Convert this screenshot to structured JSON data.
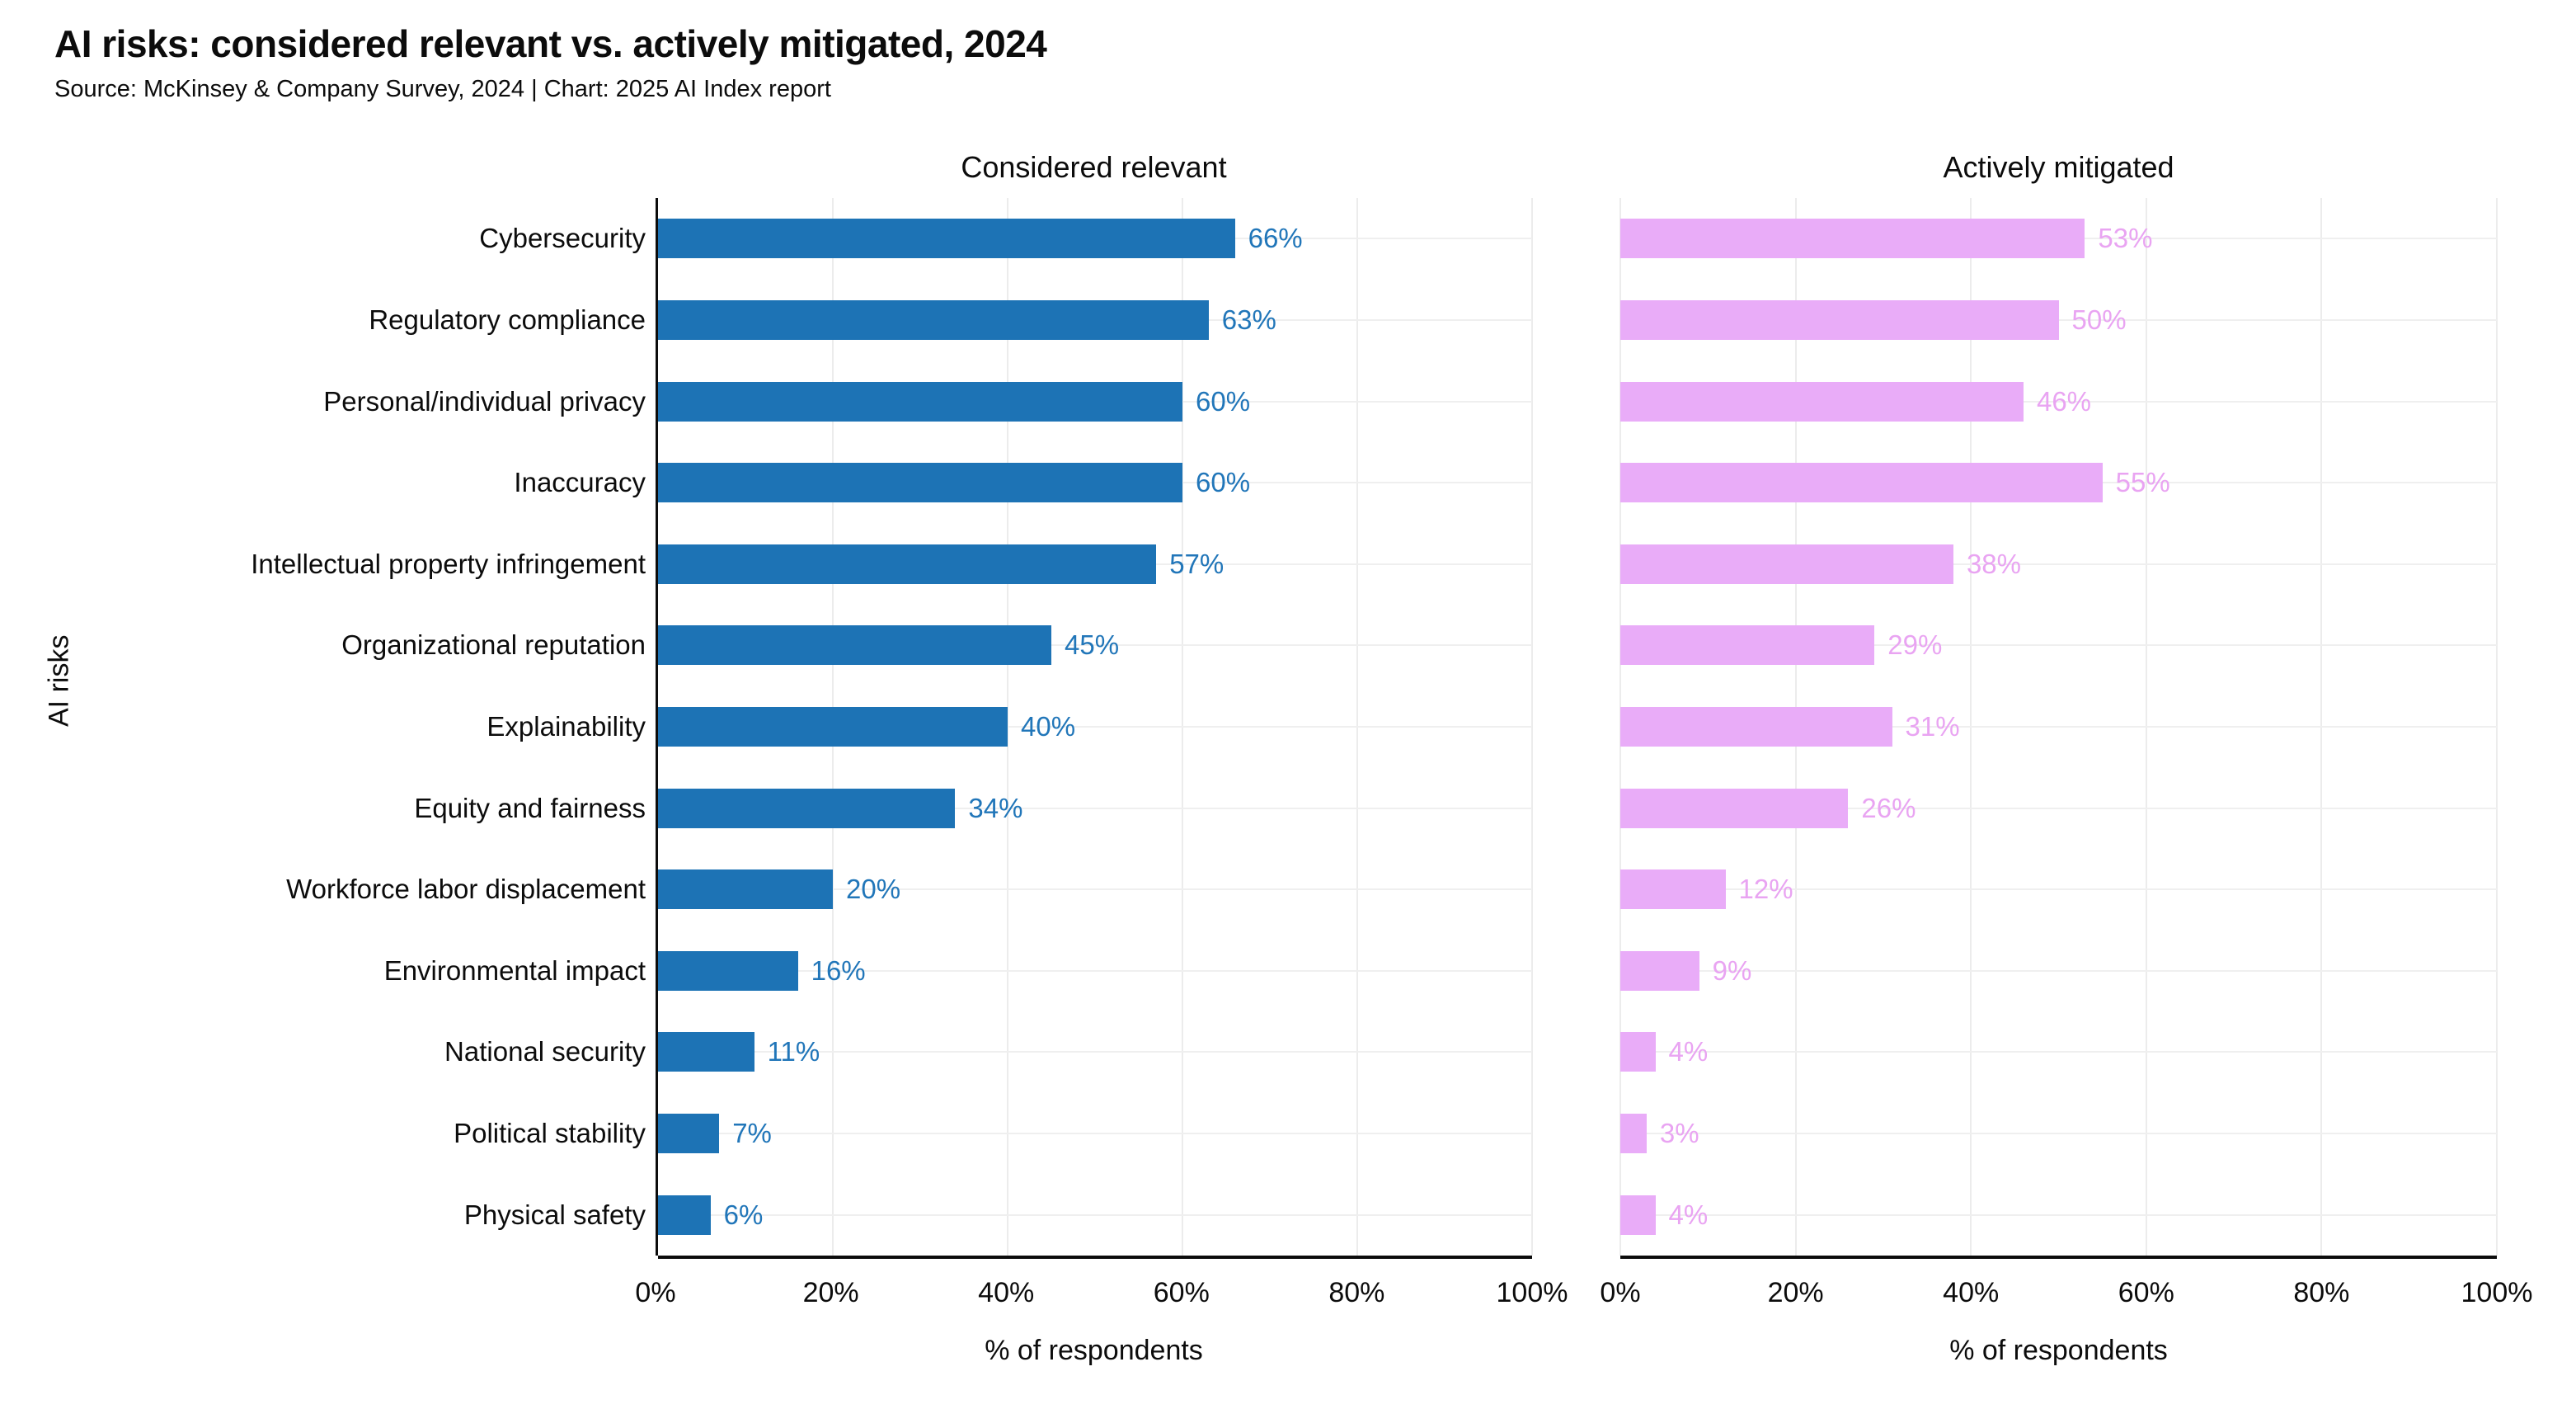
{
  "header": {
    "title": "AI risks: considered relevant vs. actively mitigated, 2024",
    "subtitle": "Source: McKinsey & Company Survey, 2024 | Chart: 2025 AI Index report"
  },
  "chart_data": {
    "type": "bar",
    "orientation": "horizontal",
    "title": "AI risks: considered relevant vs. actively mitigated, 2024",
    "subtitle": "Source: McKinsey & Company Survey, 2024 | Chart: 2025 AI Index report",
    "categories": [
      "Cybersecurity",
      "Regulatory compliance",
      "Personal/individual privacy",
      "Inaccuracy",
      "Intellectual property infringement",
      "Organizational reputation",
      "Explainability",
      "Equity and fairness",
      "Workforce labor displacement",
      "Environmental impact",
      "National security",
      "Political stability",
      "Physical safety"
    ],
    "series": [
      {
        "name": "Considered relevant",
        "values": [
          66,
          63,
          60,
          60,
          57,
          45,
          40,
          34,
          20,
          16,
          11,
          7,
          6
        ],
        "bar_color": "#1d73b5",
        "label_color": "#2176b9"
      },
      {
        "name": "Actively mitigated",
        "values": [
          53,
          50,
          46,
          55,
          38,
          29,
          31,
          26,
          12,
          9,
          4,
          3,
          4
        ],
        "bar_color": "#e9acf8",
        "label_color": "#e9a4f2"
      }
    ],
    "value_suffix": "%",
    "xlabel": "% of respondents",
    "ylabel": "AI risks",
    "xlim": [
      0,
      100
    ],
    "xticks": [
      0,
      20,
      40,
      60,
      80,
      100
    ],
    "xtick_labels": [
      "0%",
      "20%",
      "40%",
      "60%",
      "80%",
      "100%"
    ],
    "grid": true,
    "legend_position": "none"
  }
}
